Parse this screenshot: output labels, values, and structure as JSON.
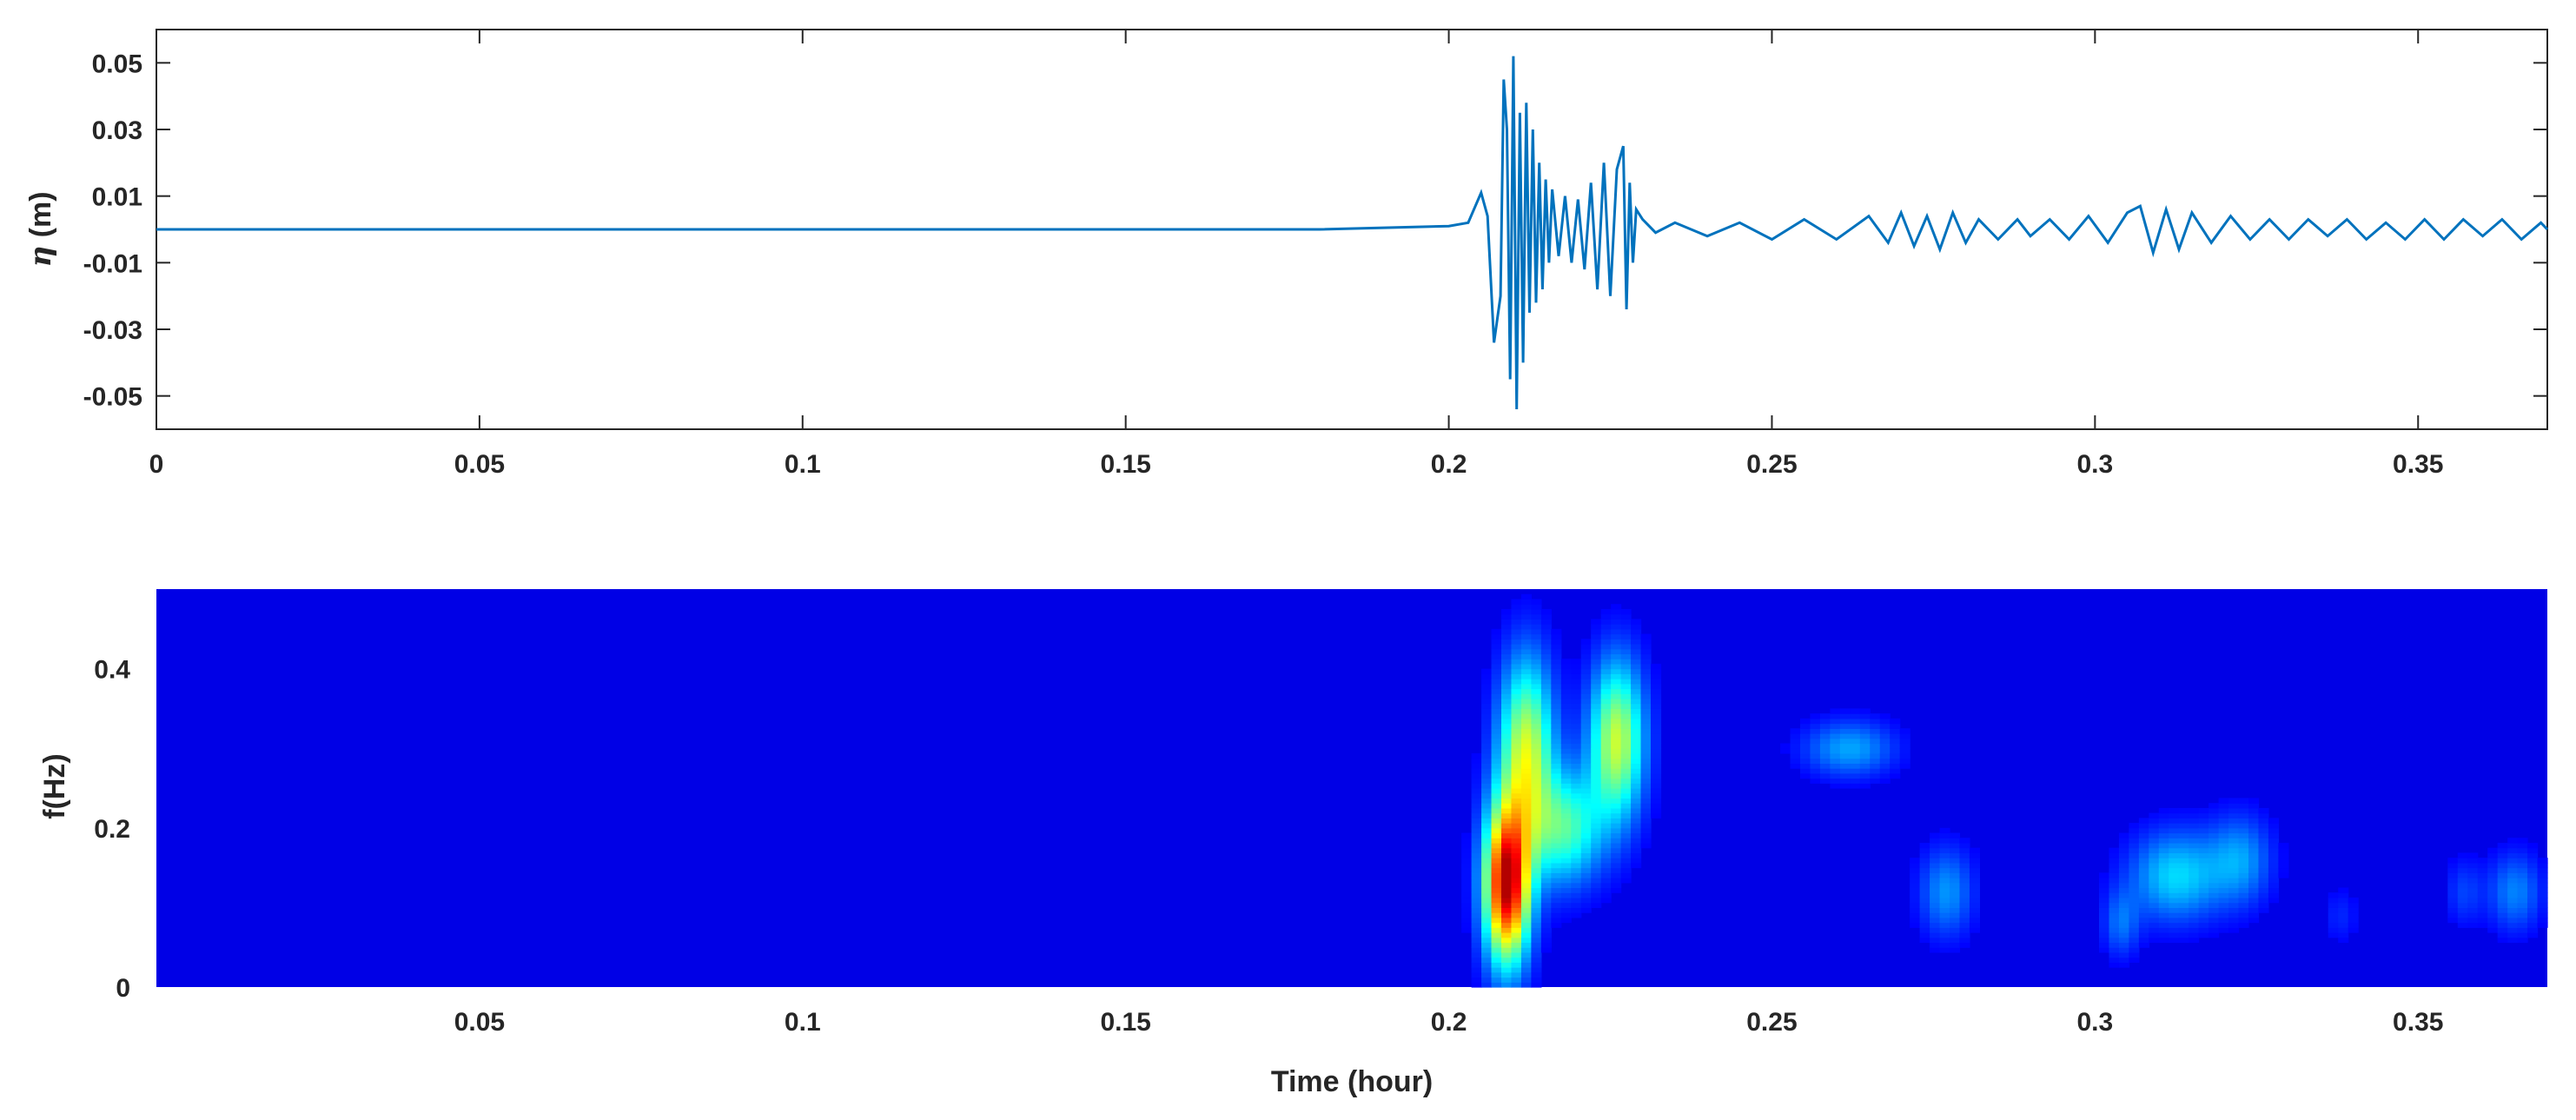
{
  "figure": {
    "panels": 2
  },
  "chart_data": [
    {
      "type": "line",
      "title": "",
      "xlabel": "",
      "ylabel": "η (m)",
      "ylabel_symbol": "η",
      "ylabel_unit": " (m)",
      "xlim": [
        0,
        0.37
      ],
      "ylim": [
        -0.06,
        0.06
      ],
      "xticks": [
        0,
        0.05,
        0.1,
        0.15,
        0.2,
        0.25,
        0.3,
        0.35
      ],
      "xtick_labels": [
        "0",
        "0.05",
        "0.1",
        "0.15",
        "0.2",
        "0.25",
        "0.3",
        "0.35"
      ],
      "yticks": [
        0.05,
        0.03,
        0.01,
        -0.01,
        -0.03,
        -0.05
      ],
      "ytick_labels": [
        "0.05",
        "0.03",
        "0.01",
        "-0.01",
        "-0.03",
        "-0.05"
      ],
      "grid": false,
      "line_color": "#0072BD",
      "series": [
        {
          "x": [
            0,
            0.02,
            0.04,
            0.06,
            0.08,
            0.1,
            0.12,
            0.14,
            0.16,
            0.18,
            0.2,
            0.203,
            0.205,
            0.206,
            0.207,
            0.208,
            0.2085,
            0.209,
            0.2095,
            0.21,
            0.2105,
            0.211,
            0.2115,
            0.212,
            0.2125,
            0.213,
            0.2135,
            0.214,
            0.2145,
            0.215,
            0.2155,
            0.216,
            0.217,
            0.218,
            0.219,
            0.22,
            0.221,
            0.222,
            0.223,
            0.224,
            0.225,
            0.226,
            0.227,
            0.2275,
            0.228,
            0.2285,
            0.229,
            0.23,
            0.232,
            0.235,
            0.24,
            0.245,
            0.25,
            0.255,
            0.26,
            0.265,
            0.268,
            0.27,
            0.272,
            0.274,
            0.276,
            0.278,
            0.28,
            0.282,
            0.285,
            0.288,
            0.29,
            0.293,
            0.296,
            0.299,
            0.302,
            0.305,
            0.307,
            0.309,
            0.311,
            0.313,
            0.315,
            0.318,
            0.321,
            0.324,
            0.327,
            0.33,
            0.333,
            0.336,
            0.339,
            0.342,
            0.345,
            0.348,
            0.351,
            0.354,
            0.357,
            0.36,
            0.363,
            0.366,
            0.369,
            0.37
          ],
          "y": [
            0.0,
            0.0,
            0.0,
            0.0,
            0.0,
            0.0,
            0.0,
            0.0,
            0.0,
            0.0,
            0.001,
            0.002,
            0.011,
            0.004,
            -0.034,
            -0.02,
            0.045,
            0.03,
            -0.045,
            0.052,
            -0.054,
            0.035,
            -0.04,
            0.038,
            -0.025,
            0.03,
            -0.022,
            0.02,
            -0.018,
            0.015,
            -0.01,
            0.012,
            -0.008,
            0.01,
            -0.01,
            0.009,
            -0.012,
            0.014,
            -0.018,
            0.02,
            -0.02,
            0.018,
            0.025,
            -0.024,
            0.014,
            -0.01,
            0.006,
            0.003,
            -0.001,
            0.002,
            -0.002,
            0.002,
            -0.003,
            0.003,
            -0.003,
            0.004,
            -0.004,
            0.005,
            -0.005,
            0.004,
            -0.006,
            0.005,
            -0.004,
            0.003,
            -0.003,
            0.003,
            -0.002,
            0.003,
            -0.003,
            0.004,
            -0.004,
            0.005,
            0.007,
            -0.007,
            0.006,
            -0.006,
            0.005,
            -0.004,
            0.004,
            -0.003,
            0.003,
            -0.003,
            0.003,
            -0.002,
            0.003,
            -0.003,
            0.002,
            -0.003,
            0.003,
            -0.003,
            0.003,
            -0.002,
            0.003,
            -0.003,
            0.002,
            0.0
          ]
        }
      ]
    },
    {
      "type": "heatmap",
      "title": "",
      "xlabel": "Time (hour)",
      "ylabel": "f(Hz)",
      "xlim": [
        0,
        0.37
      ],
      "ylim": [
        0,
        0.5
      ],
      "xticks": [
        0.05,
        0.1,
        0.15,
        0.2,
        0.25,
        0.3,
        0.35
      ],
      "xtick_labels": [
        "0.05",
        "0.1",
        "0.15",
        "0.2",
        "0.25",
        "0.3",
        "0.35"
      ],
      "yticks": [
        0,
        0.2,
        0.4
      ],
      "ytick_labels": [
        "0",
        "0.2",
        "0.4"
      ],
      "colormap": "jet",
      "background_color": "#0000CC",
      "blobs": [
        {
          "t": 0.209,
          "f": 0.13,
          "st": 0.0025,
          "sf": 0.07,
          "amp": 1.0
        },
        {
          "t": 0.212,
          "f": 0.3,
          "st": 0.003,
          "sf": 0.08,
          "amp": 0.55
        },
        {
          "t": 0.218,
          "f": 0.2,
          "st": 0.004,
          "sf": 0.05,
          "amp": 0.4
        },
        {
          "t": 0.226,
          "f": 0.31,
          "st": 0.003,
          "sf": 0.07,
          "amp": 0.55
        },
        {
          "t": 0.262,
          "f": 0.3,
          "st": 0.005,
          "sf": 0.025,
          "amp": 0.22
        },
        {
          "t": 0.277,
          "f": 0.12,
          "st": 0.003,
          "sf": 0.04,
          "amp": 0.2
        },
        {
          "t": 0.3125,
          "f": 0.14,
          "st": 0.005,
          "sf": 0.04,
          "amp": 0.28
        },
        {
          "t": 0.3225,
          "f": 0.16,
          "st": 0.0035,
          "sf": 0.04,
          "amp": 0.2
        },
        {
          "t": 0.304,
          "f": 0.08,
          "st": 0.002,
          "sf": 0.03,
          "amp": 0.15
        },
        {
          "t": 0.365,
          "f": 0.12,
          "st": 0.003,
          "sf": 0.035,
          "amp": 0.18
        },
        {
          "t": 0.357,
          "f": 0.12,
          "st": 0.002,
          "sf": 0.03,
          "amp": 0.1
        },
        {
          "t": 0.338,
          "f": 0.09,
          "st": 0.002,
          "sf": 0.025,
          "amp": 0.07
        }
      ]
    }
  ]
}
